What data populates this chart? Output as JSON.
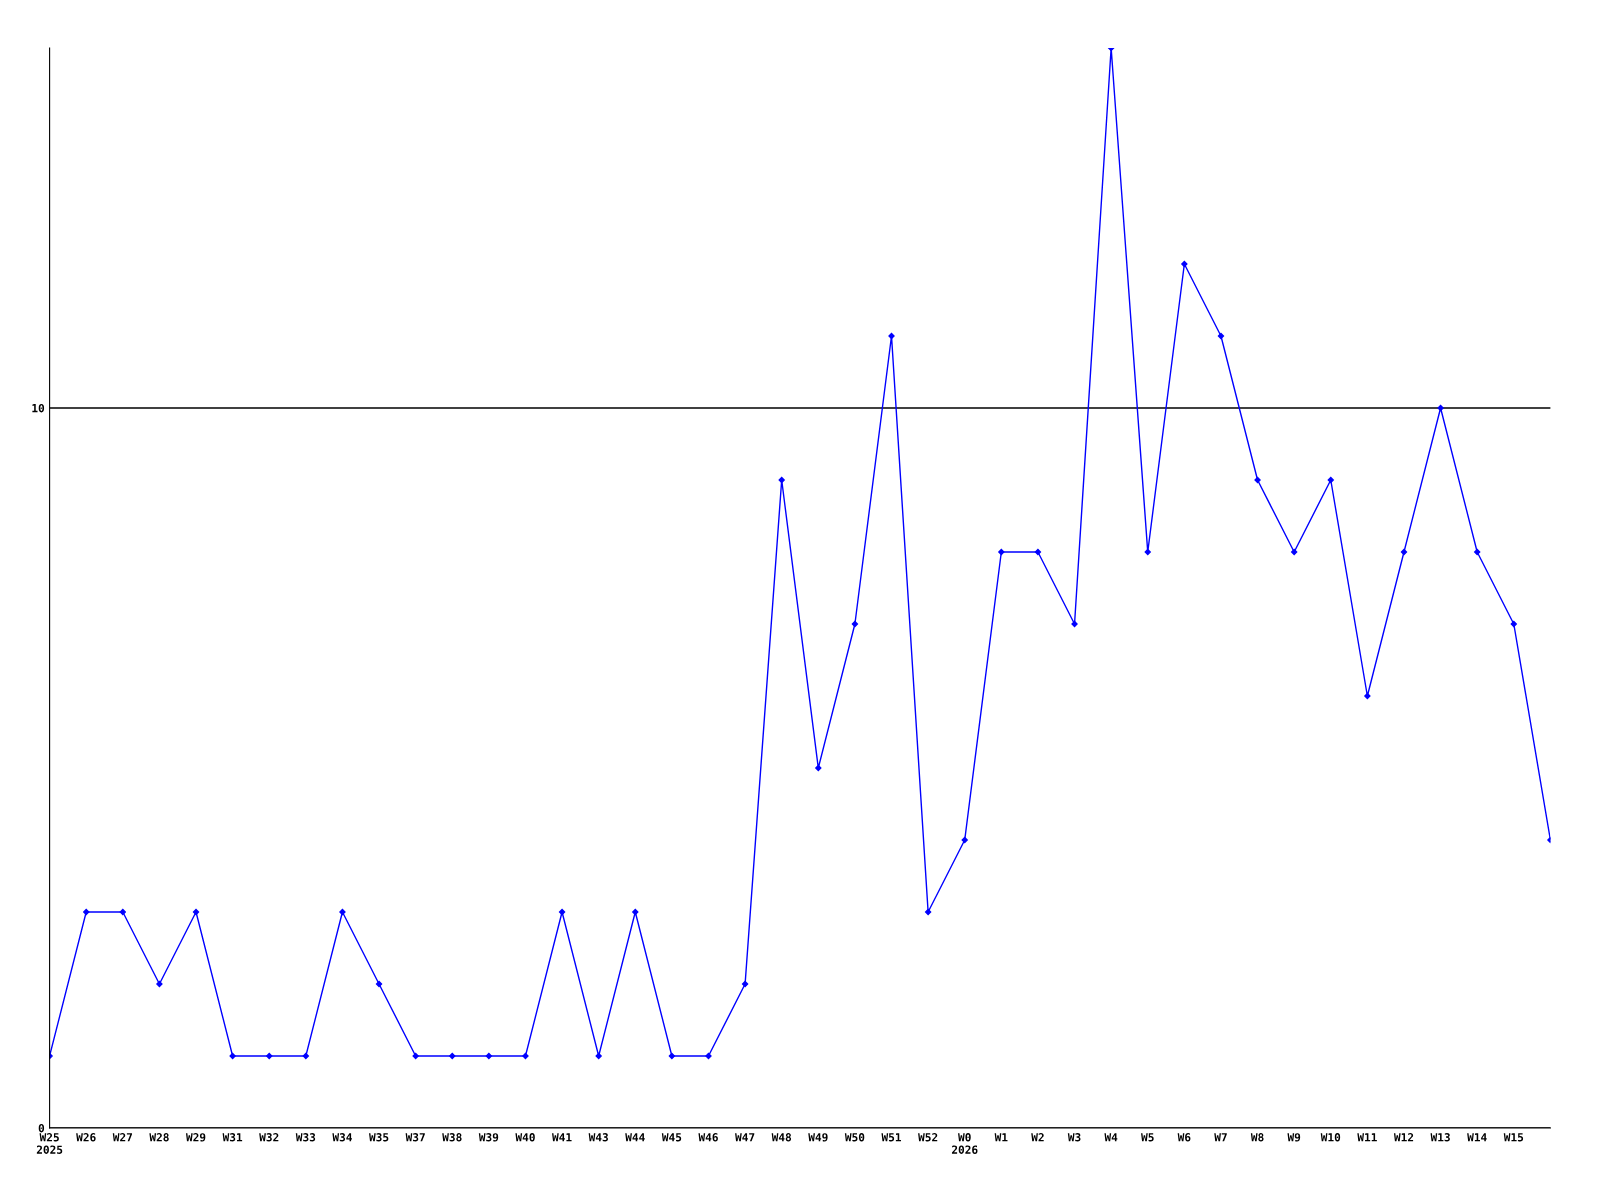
{
  "chart_data": {
    "type": "line",
    "categories": [
      "W25\n2025",
      "W26",
      "W27",
      "W28",
      "W29",
      "W31",
      "W32",
      "W33",
      "W34",
      "W35",
      "W37",
      "W38",
      "W39",
      "W40",
      "W41",
      "W43",
      "W44",
      "W45",
      "W46",
      "W47",
      "W48",
      "W49",
      "W50",
      "W51",
      "W52",
      "W0\n2026",
      "W1",
      "W2",
      "W3",
      "W4",
      "W5",
      "W6",
      "W7",
      "W8",
      "W9",
      "W10",
      "W11",
      "W12",
      "W13",
      "W14",
      "W15",
      null
    ],
    "series": [
      {
        "color": "#0000ff",
        "values": [
          1,
          3,
          3,
          2,
          3,
          1,
          1,
          1,
          3,
          2,
          1,
          1,
          1,
          1,
          3,
          1,
          3,
          1,
          1,
          2,
          9,
          5,
          7,
          11,
          3,
          4,
          8,
          8,
          7,
          15,
          8,
          12,
          11,
          9,
          8,
          9,
          6,
          8,
          10,
          8,
          7,
          4
        ]
      }
    ],
    "ylim": [
      0,
      15
    ],
    "yticks": [
      0,
      10
    ],
    "grid": "y",
    "marker": "diamond",
    "line_style": "solid",
    "legend": false
  }
}
